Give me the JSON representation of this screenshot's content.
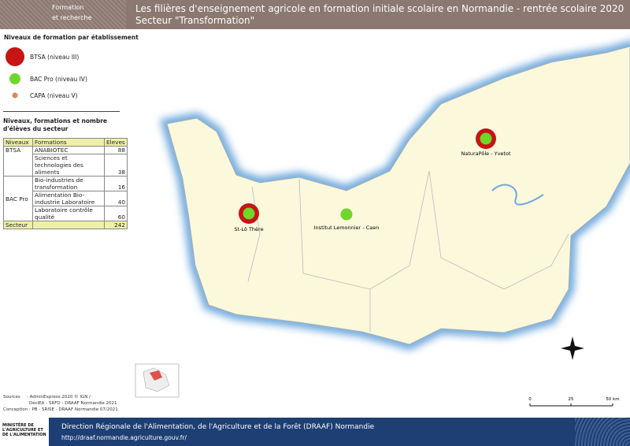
{
  "header": {
    "badge": [
      "Formation",
      "et recherche"
    ],
    "title": "Les filières d'enseignement agricole en formation initiale scolaire en Normandie - rentrée scolaire 2020",
    "subtitle": "Secteur \"Transformation\""
  },
  "legend": {
    "title": "Niveaux de formation par établissement",
    "items": [
      "BTSA (niveau III)",
      "BAC Pro (niveau IV)",
      "CAPA (niveau V)"
    ]
  },
  "table": {
    "title": "Niveaux, formations et nombre d'élèves du secteur",
    "columns": [
      "Niveaux",
      "Formations",
      "Eleves"
    ],
    "groups": [
      {
        "level": "BTSA",
        "rows": [
          [
            "ANABIOTEC",
            88
          ],
          [
            "Sciences et technologies des aliments",
            38
          ]
        ]
      },
      {
        "level": "BAC Pro",
        "rows": [
          [
            "Bio-industries de transformation",
            16
          ],
          [
            "Alimentation Bio-industrie Laboratoire",
            40
          ],
          [
            "Laboratoire contrôle qualité",
            60
          ]
        ]
      }
    ],
    "total": [
      "Secteur",
      242
    ]
  },
  "map": {
    "sites": [
      "St-Lô Thère",
      "Institut Lemonnier - Caen",
      "NaturaPôle - Yvetot"
    ],
    "scale": [
      "0",
      "25",
      "50 km"
    ]
  },
  "sources": [
    "Sources",
    ": AdminExpress 2020 © IGN /",
    "DéciEA - SRFD - DRAAF Normandie 2021",
    "Conception : PB - SRISE - DRAAF Normandie 07/2021"
  ],
  "footer": {
    "ministry": "MINISTÈRE DE L'AGRICULTURE ET DE L'ALIMENTATION",
    "direction": "Direction Régionale de l'Alimentation, de l'Agriculture et de la Forêt (DRAAF) Normandie",
    "url": "http://draaf.normandie.agriculture.gouv.fr/"
  }
}
